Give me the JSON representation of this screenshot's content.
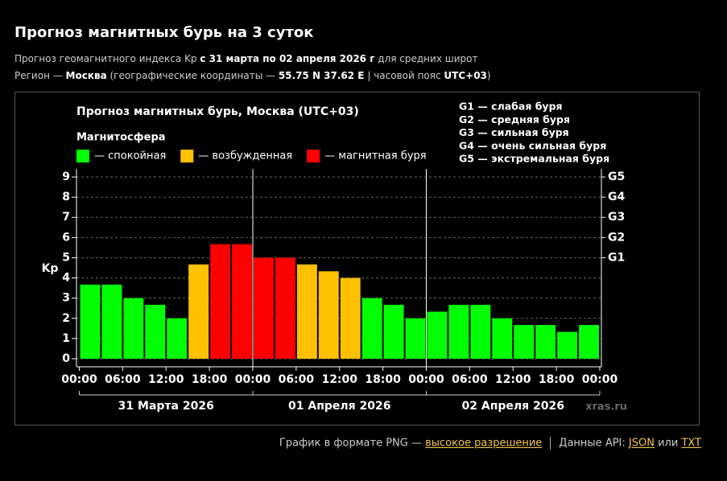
{
  "header": {
    "title": "Прогноз магнитных бурь на 3 суток",
    "line1": [
      "Прогноз геомагнитного индекса Kp ",
      "с 31 марта по 02 апреля 2026 г",
      " для средних широт"
    ],
    "line2": [
      "Регион — ",
      "Москва",
      " (географические координаты — ",
      "55.75 N 37.62 E",
      " | часовой пояс ",
      "UTC+03",
      ")"
    ]
  },
  "chart_data": {
    "type": "bar",
    "title": "Прогноз магнитных бурь, Москва (UTC+03)",
    "legend_title": "Магнитосфера",
    "legend": [
      {
        "label": "— спокойная",
        "color": "#00ff00"
      },
      {
        "label": "— возбужденная",
        "color": "#ffc000"
      },
      {
        "label": "— магнитная буря",
        "color": "#ff0000"
      }
    ],
    "scale_notes": [
      "G1 — слабая буря",
      "G2 — средняя буря",
      "G3 — сильная буря",
      "G4 — очень сильная буря",
      "G5 — экстремальная буря"
    ],
    "ylabel": "Kp",
    "x": [
      0,
      3,
      6,
      9,
      12,
      15,
      18,
      21,
      24,
      27,
      30,
      33,
      36,
      39,
      42,
      45,
      48,
      51,
      54,
      57,
      60,
      63,
      66,
      69
    ],
    "bar_width": 3,
    "values": [
      3.67,
      3.67,
      3,
      2.67,
      2,
      4.67,
      5.67,
      5.67,
      5,
      5,
      4.67,
      4.33,
      4,
      3,
      2.67,
      2,
      2.33,
      2.67,
      2.67,
      2,
      1.67,
      1.67,
      1.33,
      1.67
    ],
    "colors": [
      "#00ff00",
      "#00ff00",
      "#00ff00",
      "#00ff00",
      "#00ff00",
      "#ffc000",
      "#ff0000",
      "#ff0000",
      "#ff0000",
      "#ff0000",
      "#ffc000",
      "#ffc000",
      "#ffc000",
      "#00ff00",
      "#00ff00",
      "#00ff00",
      "#00ff00",
      "#00ff00",
      "#00ff00",
      "#00ff00",
      "#00ff00",
      "#00ff00",
      "#00ff00",
      "#00ff00"
    ],
    "xlim": [
      0,
      72
    ],
    "xticks": [
      {
        "value": 0,
        "label": "00:00"
      },
      {
        "value": 6,
        "label": "06:00"
      },
      {
        "value": 12,
        "label": "12:00"
      },
      {
        "value": 18,
        "label": "18:00"
      },
      {
        "value": 24,
        "label": "00:00"
      },
      {
        "value": 30,
        "label": "06:00"
      },
      {
        "value": 36,
        "label": "12:00"
      },
      {
        "value": 42,
        "label": "18:00"
      },
      {
        "value": 48,
        "label": "00:00"
      },
      {
        "value": 54,
        "label": "06:00"
      },
      {
        "value": 60,
        "label": "12:00"
      },
      {
        "value": 66,
        "label": "18:00"
      },
      {
        "value": 72,
        "label": "00:00"
      }
    ],
    "ylim": [
      -0.4,
      9.4
    ],
    "yticks": [
      0,
      1,
      2,
      3,
      4,
      5,
      6,
      7,
      8,
      9
    ],
    "y2lim": [
      -0.4,
      9.4
    ],
    "y2ticks": [
      {
        "value": 5,
        "label": "G1"
      },
      {
        "value": 6,
        "label": "G2"
      },
      {
        "value": 7,
        "label": "G3"
      },
      {
        "value": 8,
        "label": "G4"
      },
      {
        "value": 9,
        "label": "G5"
      }
    ],
    "grid": true,
    "day_labels": [
      "31 Марта 2026",
      "01 Апреля 2026",
      "02 Апреля 2026"
    ],
    "watermark": "xras.ru"
  },
  "footer": {
    "png_text": "График в формате PNG — ",
    "png_link": "высокое разрешение",
    "api_text": "Данные API: ",
    "json_link": "JSON",
    "or_text": " или ",
    "txt_link": "TXT"
  }
}
